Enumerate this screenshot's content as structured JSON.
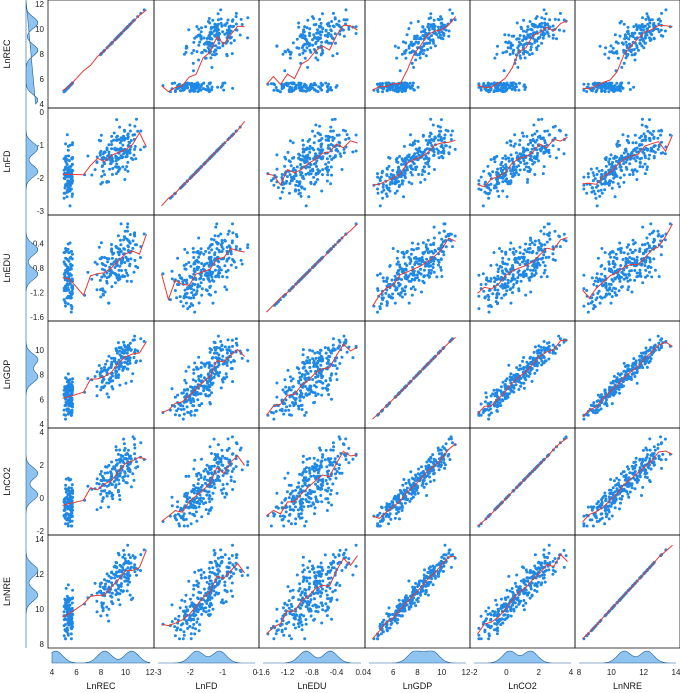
{
  "chart_data": {
    "type": "scatter",
    "variables": [
      "LnREC",
      "LnFD",
      "LnEDU",
      "LnGDP",
      "LnCO2",
      "LnNRE"
    ],
    "ranges": {
      "LnREC": [
        4,
        12
      ],
      "LnFD": [
        -3,
        0
      ],
      "LnEDU": [
        -1.6,
        0.0
      ],
      "LnGDP": [
        4,
        12
      ],
      "LnCO2": [
        -2,
        4
      ],
      "LnNRE": [
        8,
        14
      ]
    },
    "y_ticks": {
      "LnREC": [
        "4",
        "6",
        "8",
        "10",
        "12"
      ],
      "LnFD": [
        "-3",
        "-2",
        "-1",
        "0"
      ],
      "LnEDU": [
        "-1.6",
        "-1.2",
        "-0.8",
        "-0.4"
      ],
      "LnGDP": [
        "4",
        "6",
        "8",
        "10"
      ],
      "LnCO2": [
        "-2",
        "0",
        "2",
        "4"
      ],
      "LnNRE": [
        "8",
        "10",
        "12",
        "14"
      ]
    },
    "x_ticks": {
      "LnREC": [
        "4",
        "6",
        "8",
        "10",
        "12"
      ],
      "LnFD": [
        "-3",
        "-2",
        "-1",
        "0"
      ],
      "LnEDU": [
        "-1.6",
        "-1.2",
        "-0.8",
        "-0.4",
        "0.0"
      ],
      "LnGDP": [
        "4",
        "6",
        "8",
        "10",
        "12"
      ],
      "LnCO2": [
        "-2",
        "0",
        "2",
        "4"
      ],
      "LnNRE": [
        "8",
        "10",
        "12",
        "14"
      ]
    },
    "colors": {
      "points": "#1e88e5",
      "fit_line": "#e53935",
      "density_fill": "#90c4f0",
      "density_stroke": "#1f5f99"
    },
    "fit": "kernel regression line per panel",
    "diagonal_marginals": "kernel density on left and bottom margins",
    "density_peaks": {
      "LnREC": [
        4.3,
        8.3,
        10.5
      ],
      "LnFD": [
        -1.8,
        -1.1
      ],
      "LnEDU": [
        -0.9,
        -0.5
      ],
      "LnGDP": [
        7.8,
        9.2
      ],
      "LnCO2": [
        0.2,
        1.5
      ],
      "LnNRE": [
        10.8,
        12.2
      ]
    },
    "grid": false
  }
}
